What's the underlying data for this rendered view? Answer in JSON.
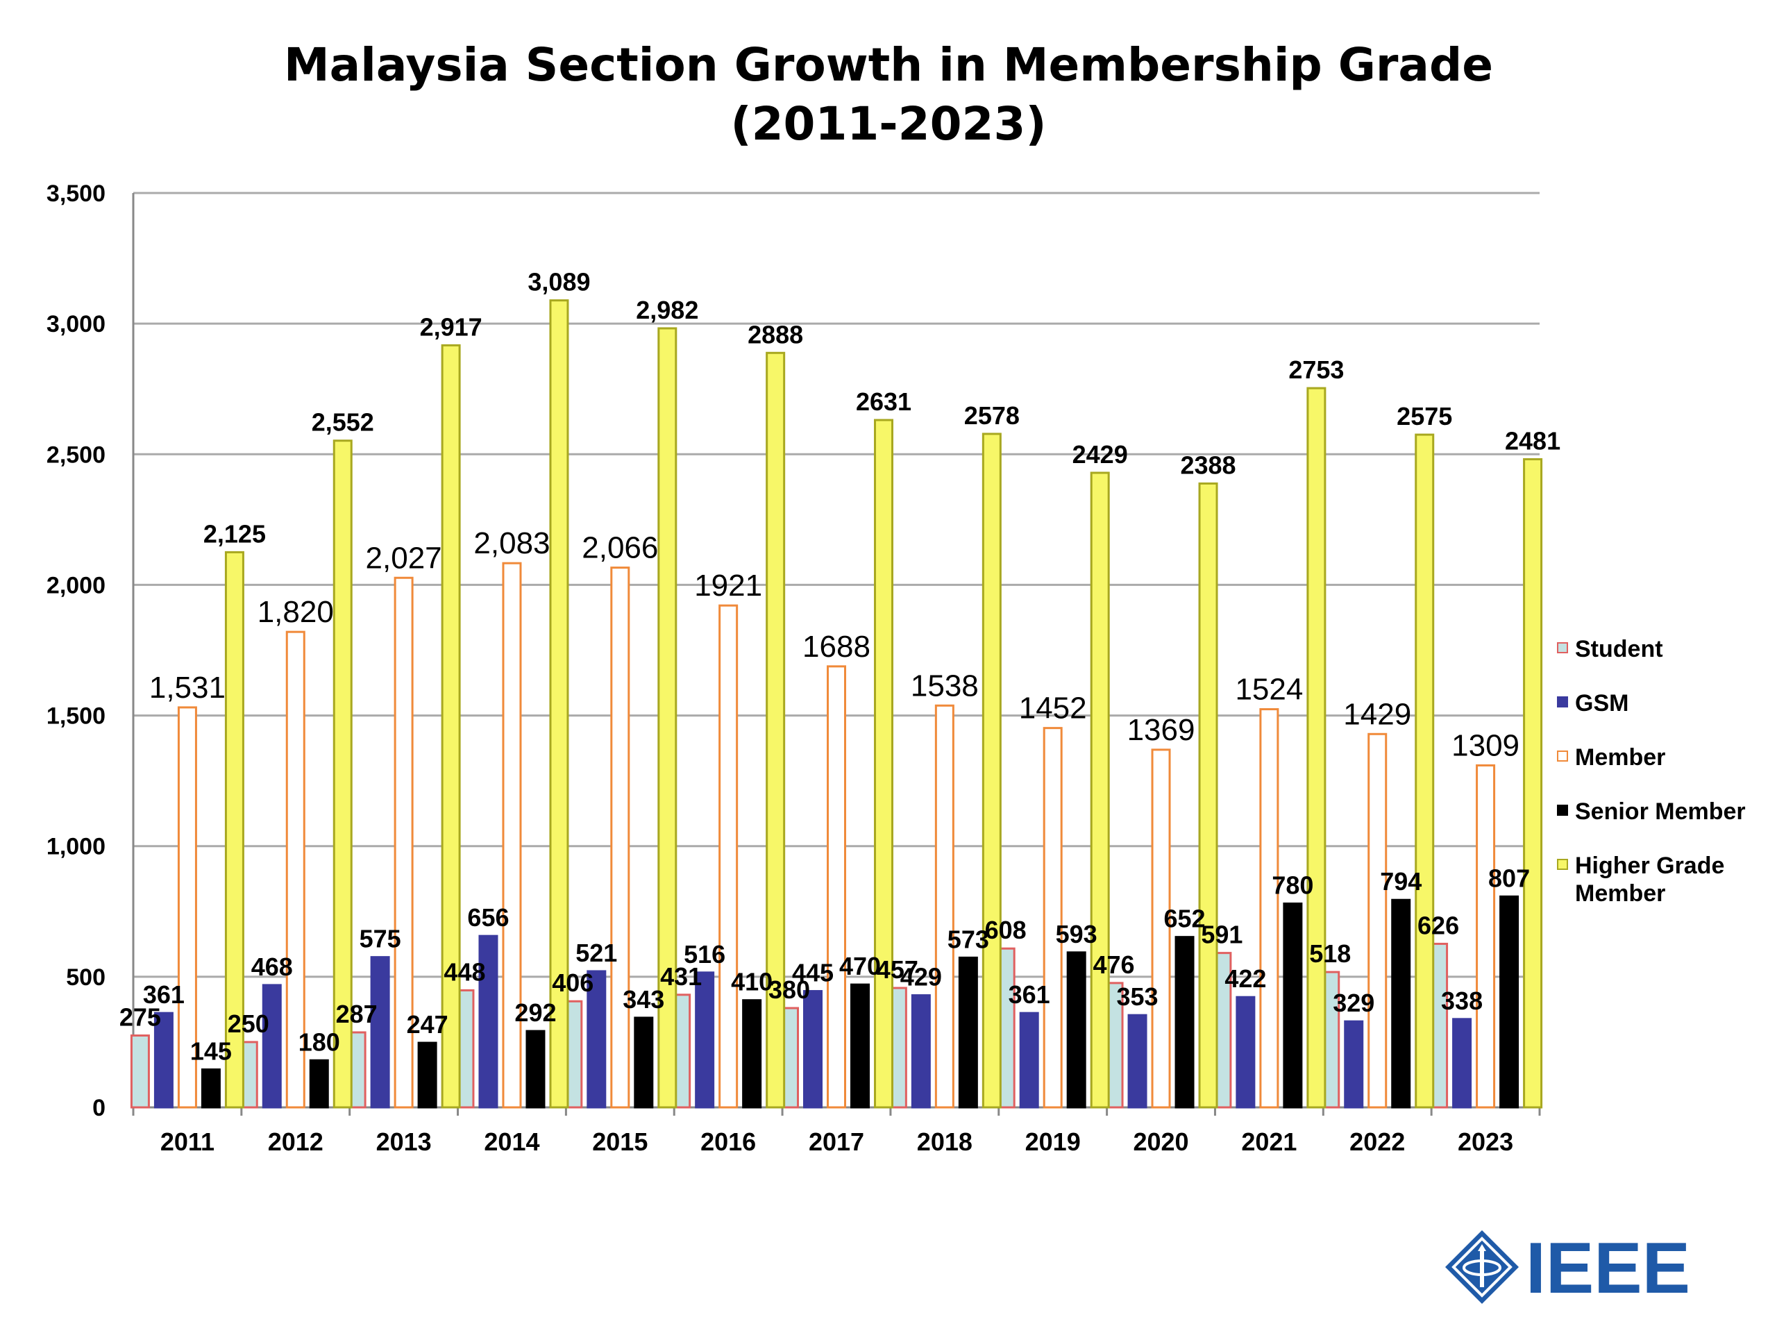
{
  "title": {
    "line1": "Malaysia Section Growth in Membership Grade",
    "line2": "(2011-2023)"
  },
  "logo": {
    "text": "IEEE",
    "icon": "ieee-diamond-logo-icon",
    "color": "#1f5aa8"
  },
  "colors": {
    "gridline": "#aaaaaa",
    "axis": "#888888"
  },
  "chart_data": {
    "type": "bar",
    "categories": [
      "2011",
      "2012",
      "2013",
      "2014",
      "2015",
      "2016",
      "2017",
      "2018",
      "2019",
      "2020",
      "2021",
      "2022",
      "2023"
    ],
    "ylim": [
      0,
      3500
    ],
    "yticks": [
      0,
      500,
      1000,
      1500,
      2000,
      2500,
      3000,
      3500
    ],
    "ytick_labels": [
      "0",
      "500",
      "1,000",
      "1,500",
      "2,000",
      "2,500",
      "3,000",
      "3,500"
    ],
    "grid": true,
    "legend_position": "right",
    "series": [
      {
        "name": "Student",
        "fill": "#c4e2e2",
        "stroke": "#e06060",
        "label_style": "bold",
        "values": [
          275,
          250,
          287,
          448,
          406,
          431,
          380,
          457,
          608,
          476,
          591,
          518,
          626
        ],
        "labels": [
          "275",
          "250",
          "287",
          "448",
          "406",
          "431",
          "380",
          "457",
          "608",
          "476",
          "591",
          "518",
          "626"
        ]
      },
      {
        "name": "GSM",
        "fill": "#3a3a9e",
        "stroke": "#3a3a9e",
        "label_style": "bold",
        "values": [
          361,
          468,
          575,
          656,
          521,
          516,
          445,
          429,
          361,
          353,
          422,
          329,
          338
        ],
        "labels": [
          "361",
          "468",
          "575",
          "656",
          "521",
          "516",
          "445",
          "429",
          "361",
          "353",
          "422",
          "329",
          "338"
        ]
      },
      {
        "name": "Member",
        "fill": "#ffffff",
        "stroke": "#f08a3a",
        "label_style": "normal",
        "values": [
          1531,
          1820,
          2027,
          2083,
          2066,
          1921,
          1688,
          1538,
          1452,
          1369,
          1524,
          1429,
          1309
        ],
        "labels": [
          "1,531",
          "1,820",
          "2,027",
          "2,083",
          "2,066",
          "1921",
          "1688",
          "1538",
          "1452",
          "1369",
          "1524",
          "1429",
          "1309"
        ]
      },
      {
        "name": "Senior Member",
        "fill": "#000000",
        "stroke": "#000000",
        "label_style": "bold",
        "values": [
          145,
          180,
          247,
          292,
          343,
          410,
          470,
          573,
          593,
          652,
          780,
          794,
          807
        ],
        "labels": [
          "145",
          "180",
          "247",
          "292",
          "343",
          "410",
          "470",
          "573",
          "593",
          "652",
          "780",
          "794",
          "807"
        ]
      },
      {
        "name": "Higher Grade Member",
        "fill": "#f7f768",
        "stroke": "#a8a820",
        "label_style": "bold",
        "values": [
          2125,
          2552,
          2917,
          3089,
          2982,
          2888,
          2631,
          2578,
          2429,
          2388,
          2753,
          2575,
          2481
        ],
        "labels": [
          "2,125",
          "2,552",
          "2,917",
          "3,089",
          "2,982",
          "2888",
          "2631",
          "2578",
          "2429",
          "2388",
          "2753",
          "2575",
          "2481"
        ]
      }
    ]
  },
  "legend": {
    "items": [
      {
        "label": "Student",
        "fill": "#c4e2e2",
        "stroke": "#e06060"
      },
      {
        "label": "GSM",
        "fill": "#3a3a9e",
        "stroke": "#3a3a9e"
      },
      {
        "label": "Member",
        "fill": "#ffffff",
        "stroke": "#f08a3a"
      },
      {
        "label": "Senior Member",
        "fill": "#000000",
        "stroke": "#000000"
      },
      {
        "label": "Higher Grade\nMember",
        "fill": "#f7f768",
        "stroke": "#a8a820"
      }
    ]
  }
}
